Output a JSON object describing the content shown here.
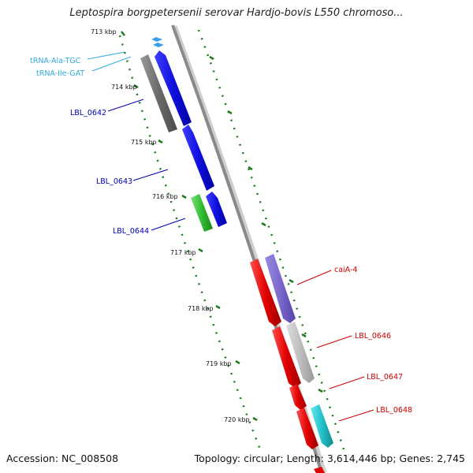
{
  "title": "Leptospira borgpetersenii serovar Hardjo-bovis L550 chromoso...",
  "footer": {
    "accession": "Accession: NC_008508",
    "topology": "Topology: circular; Length: 3,614,446 bp; Genes: 2,745"
  },
  "ticks": [
    "713 kbp",
    "714 kbp",
    "715 kbp",
    "716 kbp",
    "717 kbp",
    "718 kbp",
    "719 kbp",
    "720 kbp"
  ],
  "labels": {
    "trna_ala": "tRNA-Ala-TGC",
    "trna_ile": "tRNA-Ile-GAT",
    "lbl_0642": "LBL_0642",
    "lbl_0643": "LBL_0643",
    "lbl_0644": "LBL_0644",
    "caia_4": "caiA-4",
    "lbl_0646": "LBL_0646",
    "lbl_0647": "LBL_0647",
    "lbl_0648": "LBL_0648"
  },
  "colors": {
    "backbone": "#8a8a8a",
    "tick_mark": "#1f7a1f",
    "trna": "#3aa0e8",
    "forward_cds": "#1010e0",
    "reverse_cds": "#e00000",
    "gray_gene": "#707070",
    "green_gene": "#33bb33",
    "purple_gene": "#7a68cc",
    "light_gray_gene": "#bdbdbd",
    "cyan_gene": "#22c0c8",
    "label_blue": "#0000b0",
    "label_cyan": "#33aadd",
    "label_red": "#cc0000"
  }
}
